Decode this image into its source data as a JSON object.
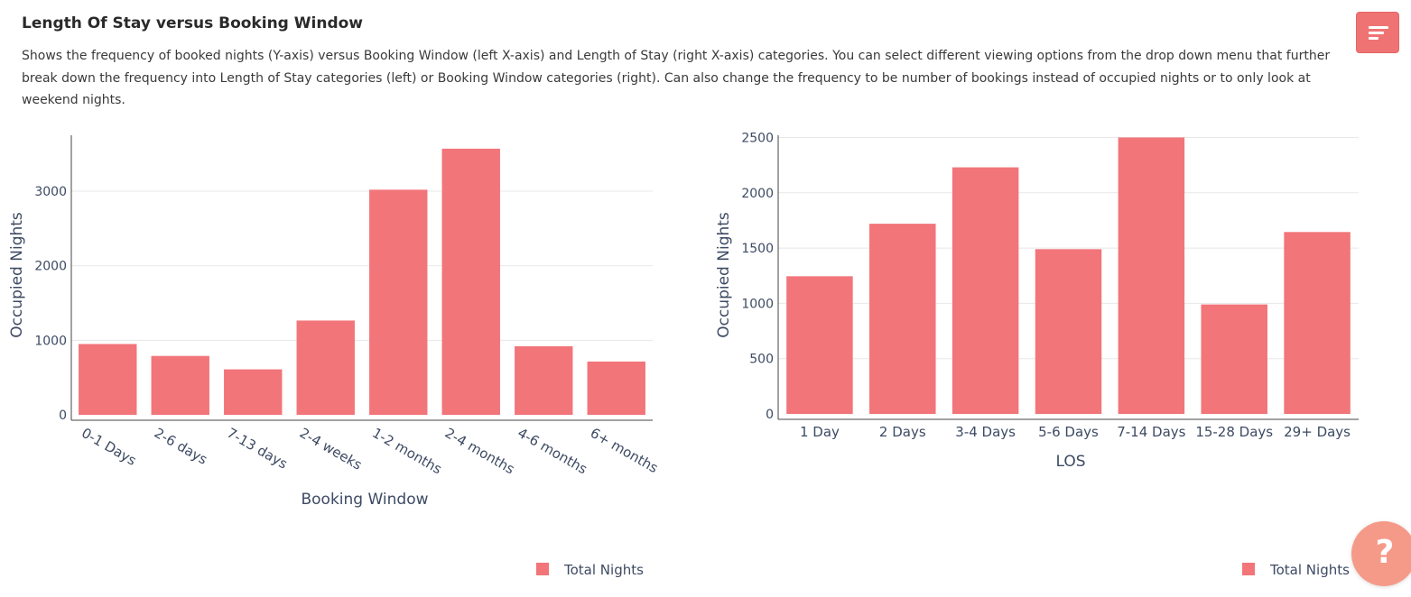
{
  "header": {
    "title": "Length Of Stay versus Booking Window",
    "description": "Shows the frequency of booked nights (Y-axis) versus Booking Window (left X-axis) and Length of Stay (right X-axis) categories. You can select different viewing options from the drop down menu that further break down the frequency into Length of Stay categories (left) or Booking Window categories (right). Can also change the frequency to be number of bookings instead of occupied nights or to only look at weekend nights."
  },
  "controls": {
    "menu_icon": "sort-lines-icon",
    "help_icon": "question-icon",
    "help_label": "?"
  },
  "colors": {
    "bar": "#f2757a",
    "accent": "#f07373",
    "help": "#f59a88",
    "axis_text": "#3d4a63"
  },
  "chart_data": [
    {
      "type": "bar",
      "title": "",
      "xlabel": "Booking Window",
      "ylabel": "Occupied Nights",
      "categories": [
        "0-1 Days",
        "2-6 days",
        "7-13 days",
        "2-4 weeks",
        "1-2 months",
        "2-4 months",
        "4-6 months",
        "6+ months"
      ],
      "series": [
        {
          "name": "Total Nights",
          "values": [
            950,
            790,
            610,
            1265,
            3020,
            3570,
            920,
            715
          ]
        }
      ],
      "ylim": [
        0,
        3750
      ],
      "yticks": [
        0,
        1000,
        2000,
        3000
      ],
      "ytick_labels": [
        "0",
        "1000",
        "2000",
        "3000"
      ],
      "grid": true,
      "legend_position": "bottom-right"
    },
    {
      "type": "bar",
      "title": "",
      "xlabel": "LOS",
      "ylabel": "Occupied Nights",
      "categories": [
        "1 Day",
        "2 Days",
        "3-4 Days",
        "5-6 Days",
        "7-14 Days",
        "15-28 Days",
        "29+ Days"
      ],
      "series": [
        {
          "name": "Total Nights",
          "values": [
            1245,
            1720,
            2230,
            1490,
            2500,
            990,
            1645
          ]
        }
      ],
      "ylim": [
        0,
        2520
      ],
      "yticks": [
        0,
        500,
        1000,
        1500,
        2000,
        2500
      ],
      "ytick_labels": [
        "0",
        "500",
        "1000",
        "1500",
        "2000",
        "2500"
      ],
      "grid": true,
      "legend_position": "bottom-right"
    }
  ]
}
